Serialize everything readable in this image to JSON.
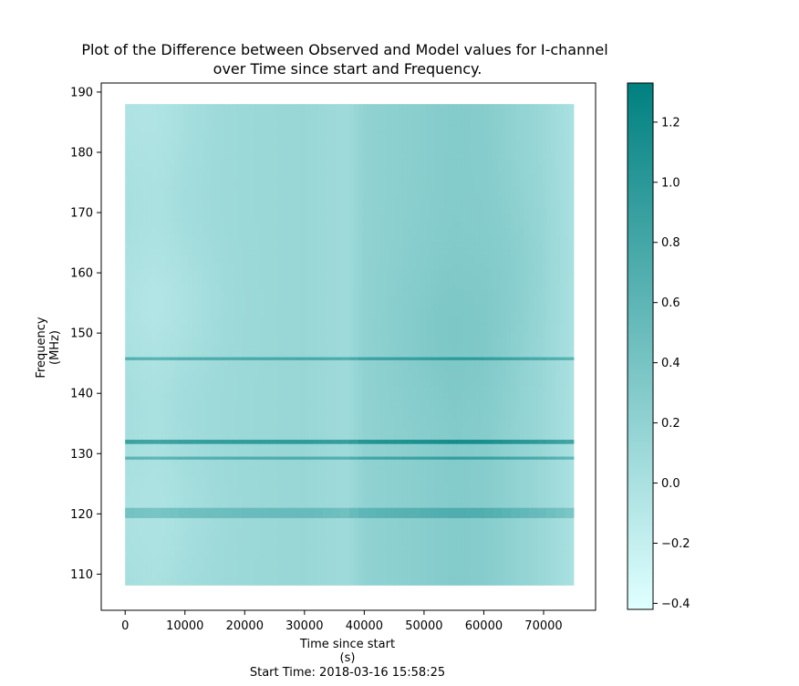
{
  "chart_data": {
    "type": "heatmap",
    "title": "Plot of the Difference between Observed and Model values for I-channel",
    "subtitle": "over Time since start and Frequency.",
    "xlabel": "Time since start",
    "xlabel_unit": "(s)",
    "x_note": "Start Time: 2018-03-16 15:58:25",
    "ylabel": "Frequency",
    "ylabel_unit": "(MHz)",
    "xlim": [
      -4000,
      78700
    ],
    "ylim": [
      104,
      191.5
    ],
    "x_ticks": [
      0,
      10000,
      20000,
      30000,
      40000,
      50000,
      60000,
      70000
    ],
    "x_tick_labels": [
      "0",
      "10000",
      "20000",
      "30000",
      "40000",
      "50000",
      "60000",
      "70000"
    ],
    "y_ticks": [
      110,
      120,
      130,
      140,
      150,
      160,
      170,
      180,
      190
    ],
    "y_tick_labels": [
      "110",
      "120",
      "130",
      "140",
      "150",
      "160",
      "170",
      "180",
      "190"
    ],
    "data_extent": {
      "x": [
        0,
        75000
      ],
      "y": [
        108.2,
        188
      ]
    },
    "colorbar": {
      "range": [
        -0.42,
        1.33
      ],
      "ticks": [
        -0.4,
        -0.2,
        0.0,
        0.2,
        0.4,
        0.6,
        0.8,
        1.0,
        1.2
      ],
      "tick_labels": [
        "−0.4",
        "−0.2",
        "0.0",
        "0.2",
        "0.4",
        "0.6",
        "0.8",
        "1.0",
        "1.2"
      ],
      "color_low": "#e0ffff",
      "color_high": "#008080"
    },
    "background_value": 0.12,
    "time_profile": [
      {
        "x": 0,
        "v": 0.06
      },
      {
        "x": 5000,
        "v": 0.02
      },
      {
        "x": 10000,
        "v": 0.08
      },
      {
        "x": 20000,
        "v": 0.12
      },
      {
        "x": 30000,
        "v": 0.14
      },
      {
        "x": 37000,
        "v": 0.08
      },
      {
        "x": 40000,
        "v": 0.2
      },
      {
        "x": 50000,
        "v": 0.26
      },
      {
        "x": 55000,
        "v": 0.3
      },
      {
        "x": 60000,
        "v": 0.28
      },
      {
        "x": 65000,
        "v": 0.2
      },
      {
        "x": 70000,
        "v": 0.12
      },
      {
        "x": 75000,
        "v": 0.0
      }
    ],
    "blobs": [
      {
        "x": 55000,
        "y": 150,
        "v": 0.38
      },
      {
        "x": 60000,
        "y": 163,
        "v": 0.3
      },
      {
        "x": 5000,
        "y": 155,
        "v": -0.12
      },
      {
        "x": 4000,
        "y": 120,
        "v": -0.06
      },
      {
        "x": 2000,
        "y": 186,
        "v": -0.1
      }
    ],
    "bands": [
      {
        "y": [
          145.5,
          146.0
        ],
        "v": 0.75
      },
      {
        "y": [
          131.6,
          132.3
        ],
        "v": 0.95
      },
      {
        "y": [
          129.0,
          129.5
        ],
        "v": 0.7
      },
      {
        "y": [
          119.3,
          121.0
        ],
        "v": 0.5
      }
    ]
  }
}
